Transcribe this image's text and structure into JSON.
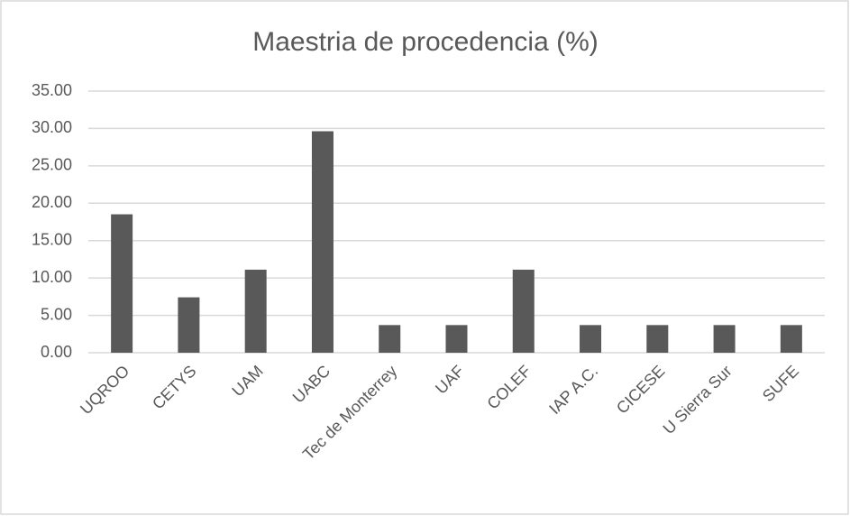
{
  "chart_data": {
    "type": "bar",
    "title": "Maestria de procedencia (%)",
    "categories": [
      "UQROO",
      "CETYS",
      "UAM",
      "UABC",
      "Tec de Monterrey",
      "UAF",
      "COLEF",
      "IAP A.C.",
      "CICESE",
      "U Sierra Sur",
      "SUFE"
    ],
    "values": [
      18.52,
      7.41,
      11.11,
      29.63,
      3.7,
      3.7,
      11.11,
      3.7,
      3.7,
      3.7,
      3.7
    ],
    "color": "#595959",
    "ylim": [
      0,
      35
    ],
    "yticks": [
      {
        "value": 0,
        "label": "0.00"
      },
      {
        "value": 5,
        "label": "5.00"
      },
      {
        "value": 10,
        "label": "10.00"
      },
      {
        "value": 15,
        "label": "15.00"
      },
      {
        "value": 20,
        "label": "20.00"
      },
      {
        "value": 25,
        "label": "25.00"
      },
      {
        "value": 30,
        "label": "30.00"
      },
      {
        "value": 35,
        "label": "35.00"
      }
    ],
    "grid": true
  }
}
